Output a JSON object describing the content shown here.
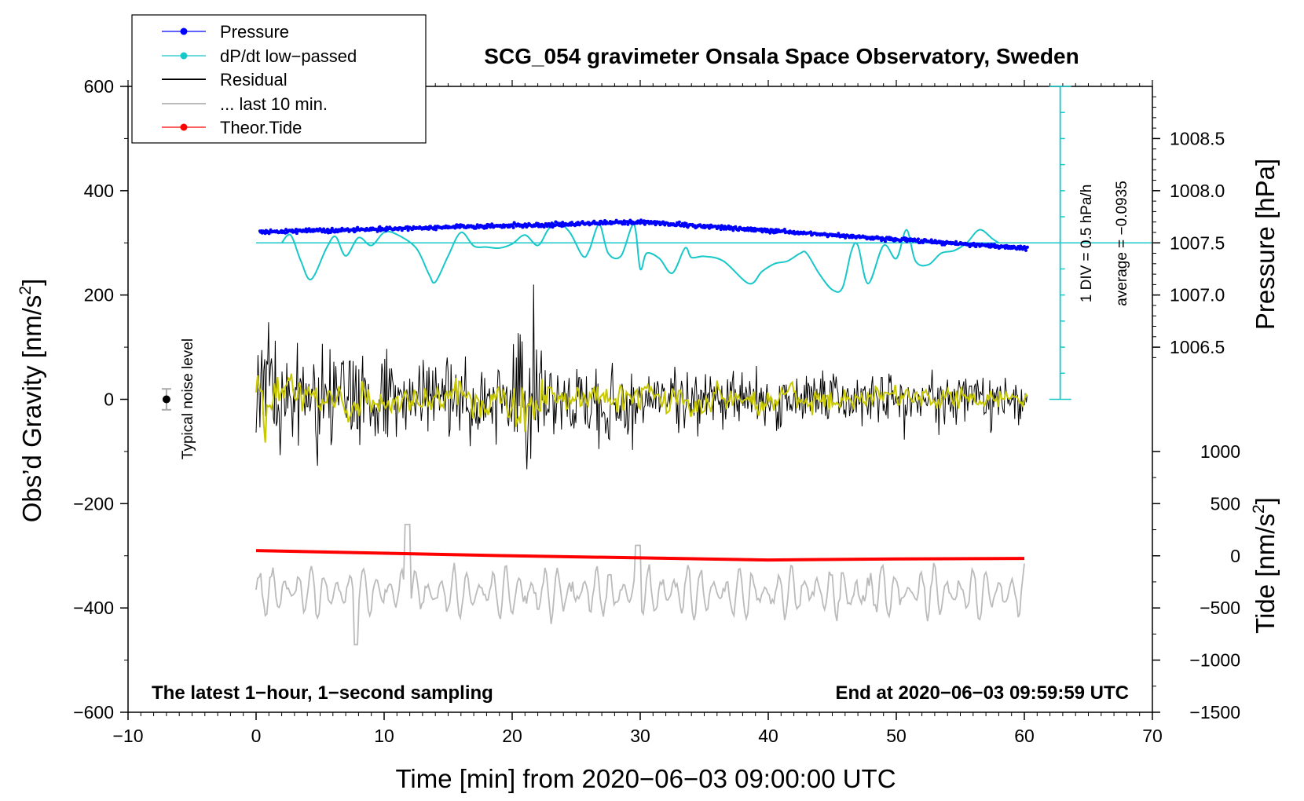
{
  "chart_data": {
    "type": "line",
    "title": "SCG_054 gravimeter Onsala Space Observatory, Sweden",
    "xlabel": "Time [min] from 2020−06−03 09:00:00 UTC",
    "ylabel_left": "Obs’d Gravity [nm/s",
    "ylabel_left_sup": "2",
    "ylabel_left_end": "]",
    "ylabel_right_pressure": "Pressure [hPa]",
    "ylabel_right_tide": "Tide [nm/s",
    "ylabel_right_tide_sup": "2",
    "ylabel_right_tide_end": "]",
    "xlim": [
      -10,
      70
    ],
    "ylim": [
      -600,
      600
    ],
    "x_ticks": [
      -10,
      0,
      10,
      20,
      30,
      40,
      50,
      60,
      70
    ],
    "x_tick_labels": [
      "−10",
      "0",
      "10",
      "20",
      "30",
      "40",
      "50",
      "60",
      "70"
    ],
    "y_ticks": [
      -600,
      -400,
      -200,
      0,
      200,
      400,
      600
    ],
    "y_tick_labels": [
      "−600",
      "−400",
      "−200",
      "0",
      "200",
      "400",
      "600"
    ],
    "pressure_ticks": [
      1006.5,
      1007.0,
      1007.5,
      1008.0,
      1008.5
    ],
    "pressure_tick_labels": [
      "1006.5",
      "1007.0",
      "1007.5",
      "1008.0",
      "1008.5"
    ],
    "tide_ticks": [
      -1500,
      -1000,
      -500,
      0,
      500,
      1000
    ],
    "tide_tick_labels": [
      "−1500",
      "−1000",
      "−500",
      "0",
      "500",
      "1000"
    ],
    "pressure_hpa_start": 1007.6,
    "pressure_hpa_mid": 1007.7,
    "pressure_hpa_end": 1007.45,
    "dpdt_average": -0.0935,
    "dpdt_div_text": "1 DIV = 0.5 hPa/h",
    "dpdt_avg_text": "average = −0.0935",
    "dpdt_keypoints": [
      [
        2.0,
        0
      ],
      [
        2.7,
        15
      ],
      [
        3.5,
        -35
      ],
      [
        4.3,
        -70
      ],
      [
        5.5,
        -10
      ],
      [
        6.2,
        12
      ],
      [
        7.0,
        -25
      ],
      [
        8.0,
        10
      ],
      [
        9.0,
        -5
      ],
      [
        10.0,
        20
      ],
      [
        11.0,
        16
      ],
      [
        12.5,
        -10
      ],
      [
        13.5,
        -60
      ],
      [
        14.0,
        -75
      ],
      [
        15.0,
        -25
      ],
      [
        16.0,
        20
      ],
      [
        17.0,
        -6
      ],
      [
        18.0,
        -8
      ],
      [
        19.0,
        -10
      ],
      [
        20.0,
        -2
      ],
      [
        21.0,
        15
      ],
      [
        22.0,
        -5
      ],
      [
        22.8,
        25
      ],
      [
        23.5,
        40
      ],
      [
        24.5,
        20
      ],
      [
        25.5,
        -25
      ],
      [
        26.0,
        -15
      ],
      [
        26.8,
        35
      ],
      [
        27.5,
        -20
      ],
      [
        28.5,
        -25
      ],
      [
        29.5,
        35
      ],
      [
        30.0,
        -50
      ],
      [
        30.5,
        -20
      ],
      [
        31.5,
        -30
      ],
      [
        32.5,
        -58
      ],
      [
        33.5,
        -10
      ],
      [
        34.0,
        -28
      ],
      [
        35.0,
        -26
      ],
      [
        36.5,
        -35
      ],
      [
        38.5,
        -78
      ],
      [
        39.5,
        -55
      ],
      [
        40.5,
        -40
      ],
      [
        41.5,
        -35
      ],
      [
        42.5,
        -20
      ],
      [
        43.0,
        -20
      ],
      [
        44.0,
        -60
      ],
      [
        45.0,
        -90
      ],
      [
        45.8,
        -86
      ],
      [
        46.5,
        -15
      ],
      [
        47.0,
        -5
      ],
      [
        47.8,
        -78
      ],
      [
        49.0,
        -5
      ],
      [
        50.0,
        -30
      ],
      [
        50.8,
        25
      ],
      [
        51.5,
        -35
      ],
      [
        52.5,
        -42
      ],
      [
        53.5,
        -20
      ],
      [
        54.5,
        -15
      ],
      [
        55.5,
        0
      ],
      [
        56.5,
        25
      ],
      [
        57.5,
        8
      ],
      [
        58.0,
        0
      ]
    ],
    "tide_series": [
      [
        0,
        50
      ],
      [
        20,
        0
      ],
      [
        30,
        -20
      ],
      [
        40,
        -40
      ],
      [
        50,
        -30
      ],
      [
        60,
        -25
      ]
    ],
    "noise_bar_x": -7,
    "noise_bar_value": 0,
    "noise_bar_halfwidth": 20,
    "noise_label": "Typical noise level",
    "footer_left": "The latest 1−hour, 1−second sampling",
    "footer_right": "End at 2020−06−03 09:59:59 UTC",
    "legend": [
      {
        "label": "Pressure",
        "color": "#0000ff",
        "marker": true
      },
      {
        "label": "dP/dt low−passed",
        "color": "#18c8c8",
        "marker": true
      },
      {
        "label": "Residual",
        "color": "#000000",
        "marker": false
      },
      {
        "label": "... last 10 min.",
        "color": "#bbbbbb",
        "marker": false
      },
      {
        "label": "Theor.Tide",
        "color": "#ff0000",
        "marker": true
      }
    ],
    "colors": {
      "pressure": "#0000ff",
      "dpdt": "#18c8c8",
      "residual": "#000000",
      "smoothed": "#c8c800",
      "last10": "#bbbbbb",
      "tide": "#ff0000"
    }
  }
}
